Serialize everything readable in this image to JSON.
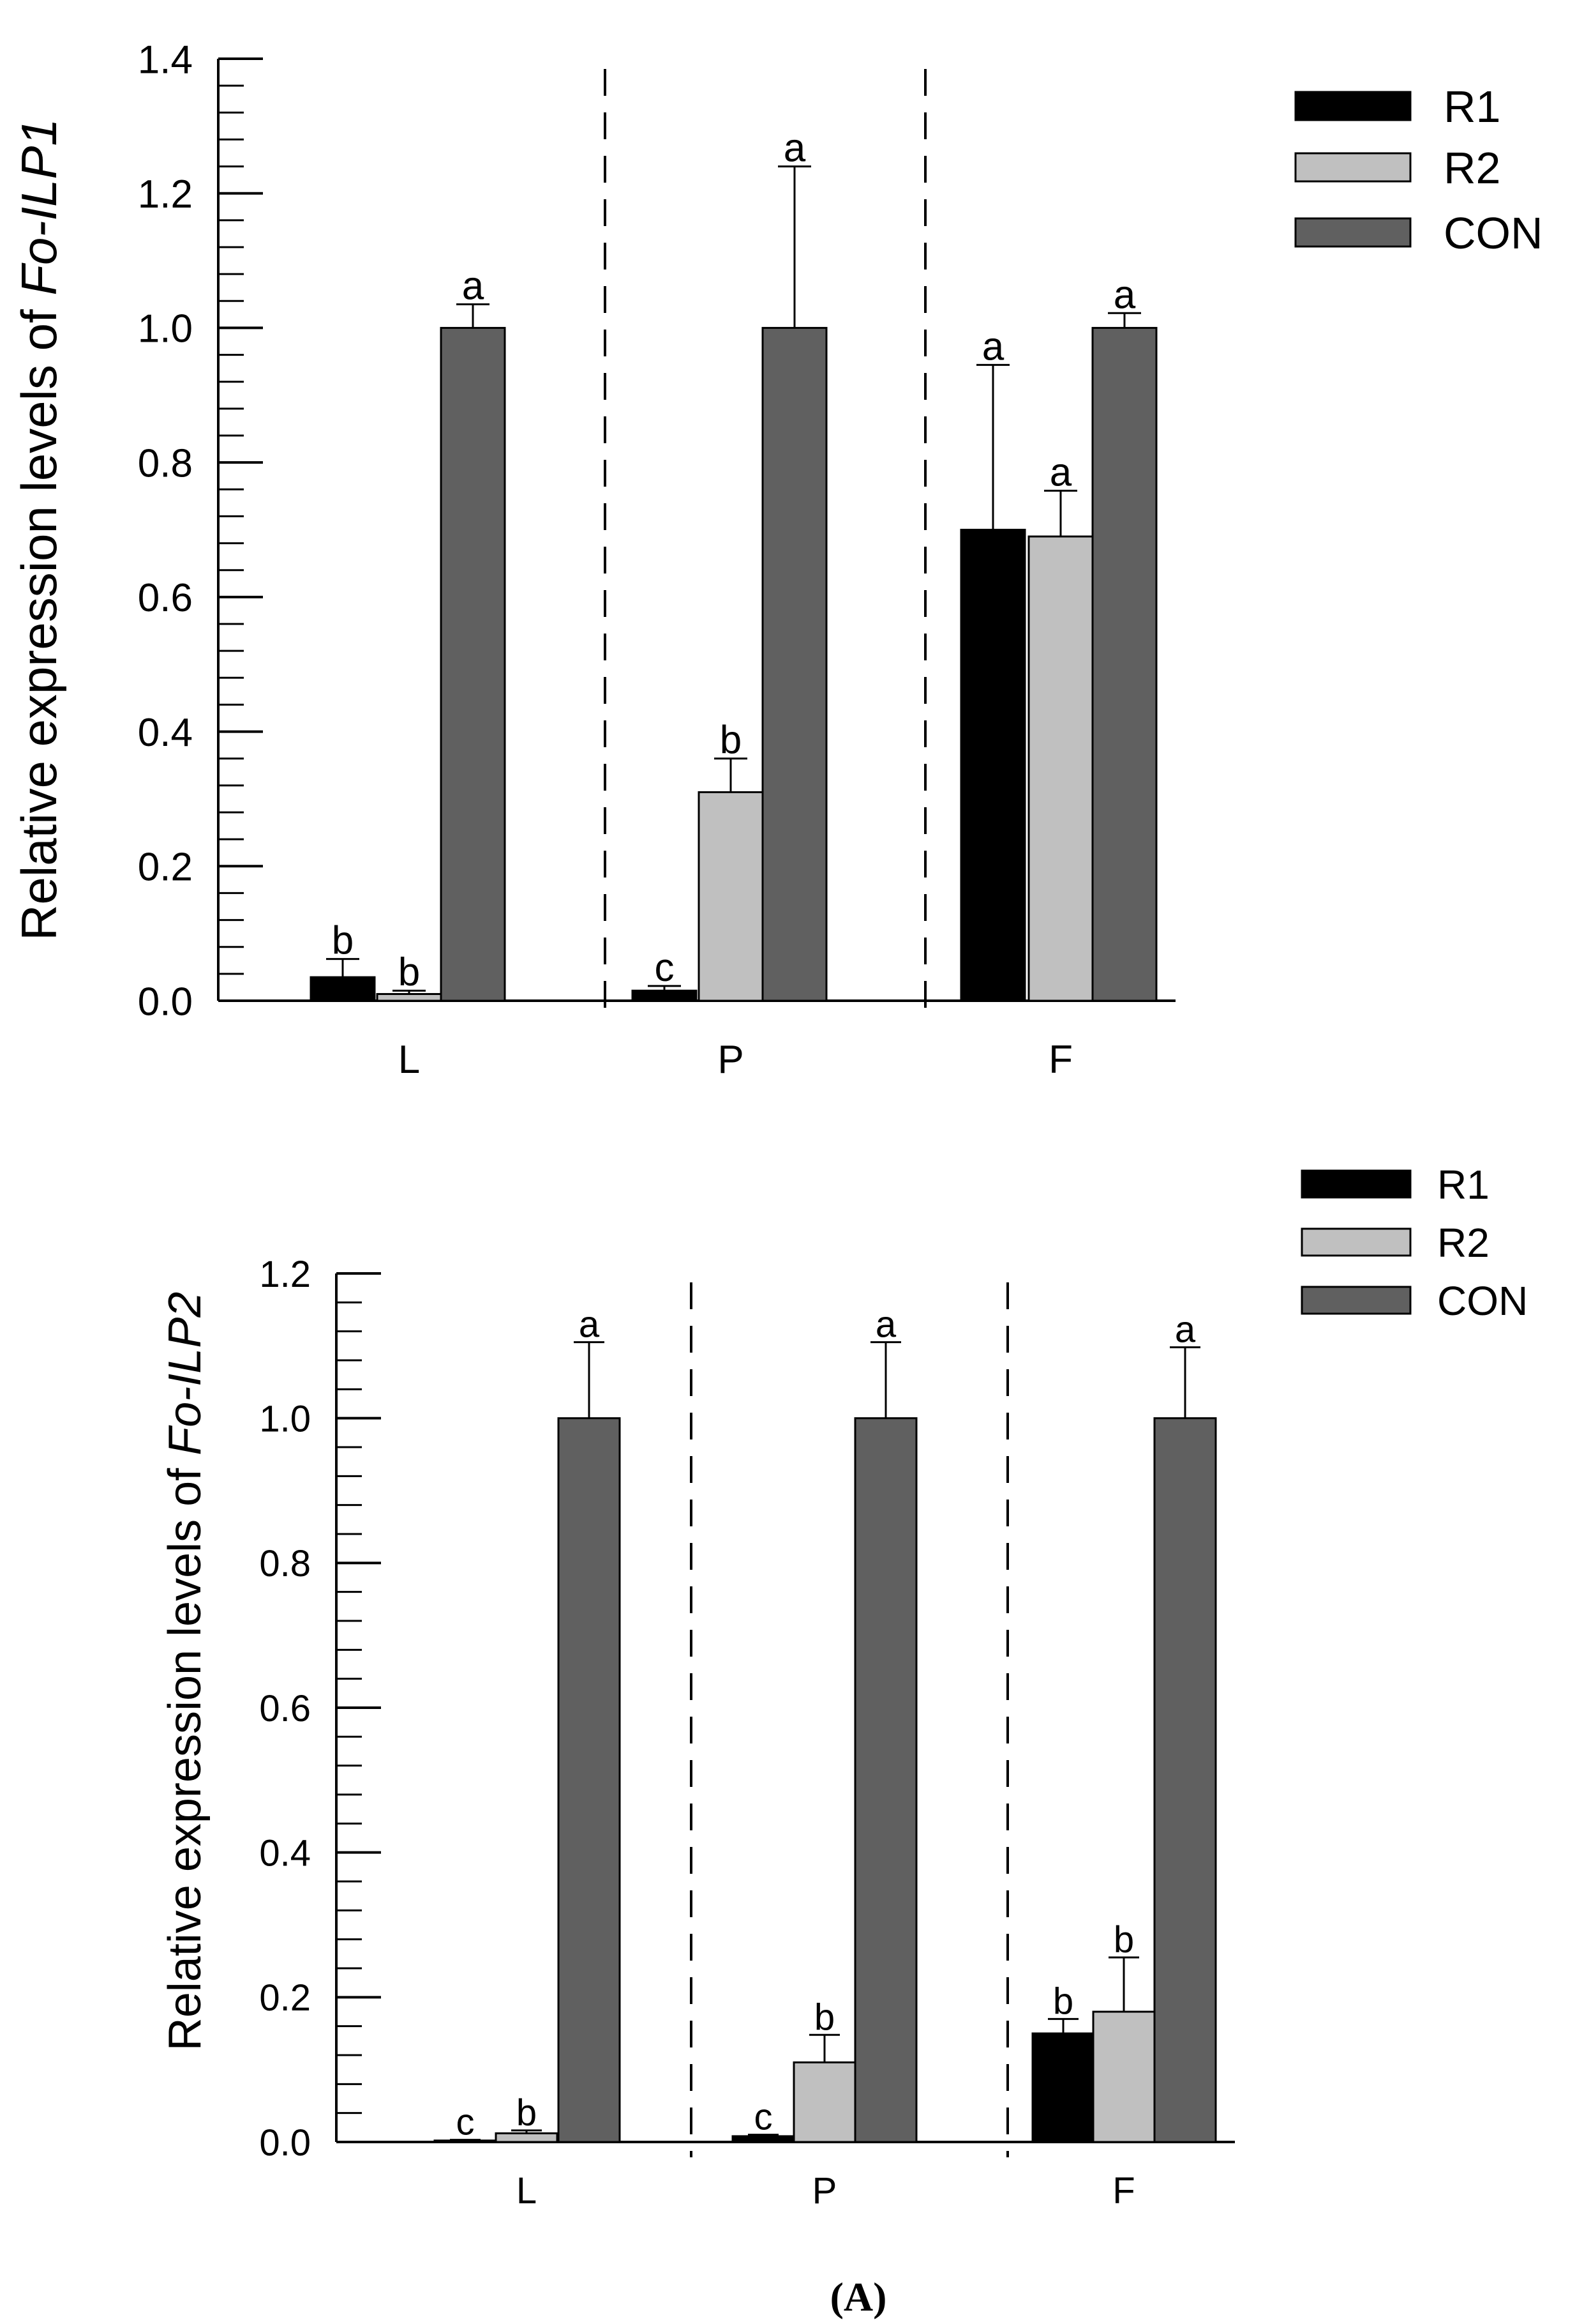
{
  "caption": "(A)",
  "chart_data": [
    {
      "type": "bar",
      "gene_prefix": "Relative expression levels of ",
      "gene_italic": "Fo-ILP1",
      "ylabel": "Relative expression levels of Fo-ILP1",
      "xlabel": "",
      "categories": [
        "L",
        "P",
        "F"
      ],
      "ylim": [
        0,
        1.4
      ],
      "yticks": [
        0.0,
        0.2,
        0.4,
        0.6,
        0.8,
        1.0,
        1.2,
        1.4
      ],
      "ytick_labels": [
        "0.0",
        "0.2",
        "0.4",
        "0.6",
        "0.8",
        "1.0",
        "1.2",
        "1.4"
      ],
      "legend_position": "top-right",
      "series": [
        {
          "name": "R1",
          "color": "#000000",
          "values": [
            0.035,
            0.015,
            0.7
          ],
          "errors": [
            0.027,
            0.007,
            0.245
          ],
          "letters": [
            "b",
            "c",
            "a"
          ]
        },
        {
          "name": "R2",
          "color": "#c0c0c0",
          "values": [
            0.01,
            0.31,
            0.69
          ],
          "errors": [
            0.005,
            0.05,
            0.068
          ],
          "letters": [
            "b",
            "b",
            "a"
          ]
        },
        {
          "name": "CON",
          "color": "#606060",
          "values": [
            1.0,
            1.0,
            1.0
          ],
          "errors": [
            0.035,
            0.24,
            0.022
          ],
          "letters": [
            "a",
            "a",
            "a"
          ]
        }
      ]
    },
    {
      "type": "bar",
      "gene_prefix": "Relative expression levels of ",
      "gene_italic": "Fo-ILP2",
      "ylabel": "Relative expression levels of Fo-ILP2",
      "xlabel": "",
      "categories": [
        "L",
        "P",
        "F"
      ],
      "ylim": [
        0,
        1.2
      ],
      "yticks": [
        0.0,
        0.2,
        0.4,
        0.6,
        0.8,
        1.0,
        1.2
      ],
      "ytick_labels": [
        "0.0",
        "0.2",
        "0.4",
        "0.6",
        "0.8",
        "1.0",
        "1.2"
      ],
      "legend_position": "top-right",
      "series": [
        {
          "name": "R1",
          "color": "#000000",
          "values": [
            0.002,
            0.008,
            0.15
          ],
          "errors": [
            0.001,
            0.002,
            0.02
          ],
          "letters": [
            "c",
            "c",
            "b"
          ]
        },
        {
          "name": "R2",
          "color": "#c0c0c0",
          "values": [
            0.012,
            0.11,
            0.18
          ],
          "errors": [
            0.004,
            0.038,
            0.075
          ],
          "letters": [
            "b",
            "b",
            "b"
          ]
        },
        {
          "name": "CON",
          "color": "#606060",
          "values": [
            1.0,
            1.0,
            1.0
          ],
          "errors": [
            0.105,
            0.105,
            0.098
          ],
          "letters": [
            "a",
            "a",
            "a"
          ]
        }
      ]
    }
  ]
}
